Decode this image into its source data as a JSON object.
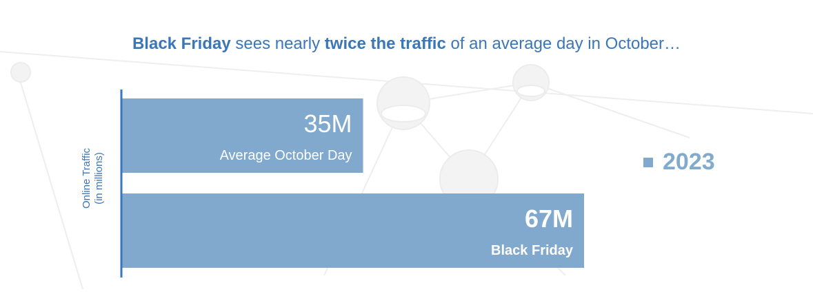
{
  "title": {
    "part1": "Black Friday",
    "part2": " sees nearly ",
    "part3": "twice the traffic",
    "part4": " of an average day in October…"
  },
  "colors": {
    "bar": "#80a9cd",
    "axis": "#3a76b8",
    "title": "#3a76b8",
    "legend_text": "#82aacd"
  },
  "chart_data": {
    "type": "bar",
    "orientation": "horizontal",
    "categories": [
      "Average October Day",
      "Black Friday"
    ],
    "series": [
      {
        "name": "2023",
        "values": [
          35,
          67
        ]
      }
    ],
    "value_labels": [
      "35M",
      "67M"
    ],
    "ylabel_line1": "Online Traffic",
    "ylabel_line2": "(in millions)",
    "legend_position": "right",
    "grid": false
  }
}
